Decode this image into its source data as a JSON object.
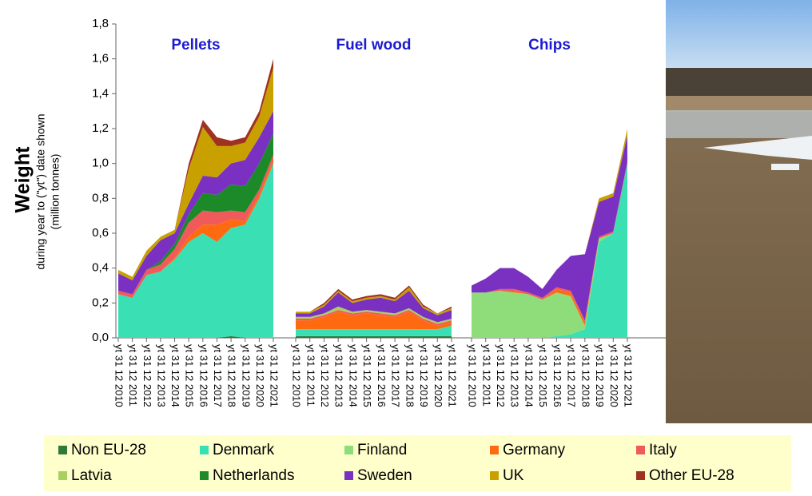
{
  "chart_data": {
    "type": "area",
    "y_label": "Weight",
    "y_sublabel": [
      "during year to (\"yt\") date shown",
      "(million tonnes)"
    ],
    "ylim": [
      0,
      1.8
    ],
    "yticks": [
      {
        "value": 0,
        "label": "0,0"
      },
      {
        "value": 0.2,
        "label": "0,2"
      },
      {
        "value": 0.4,
        "label": "0,4"
      },
      {
        "value": 0.6,
        "label": "0,6"
      },
      {
        "value": 0.8,
        "label": "0,8"
      },
      {
        "value": 1.0,
        "label": "1,0"
      },
      {
        "value": 1.2,
        "label": "1,2"
      },
      {
        "value": 1.4,
        "label": "1,4"
      },
      {
        "value": 1.6,
        "label": "1,6"
      },
      {
        "value": 1.8,
        "label": "1,8"
      }
    ],
    "legend": [
      {
        "name": "Non EU-28",
        "color": "#2f7a3a"
      },
      {
        "name": "Denmark",
        "color": "#3ae0b4"
      },
      {
        "name": "Finland",
        "color": "#8fdc7a"
      },
      {
        "name": "Germany",
        "color": "#ff6a10"
      },
      {
        "name": "Italy",
        "color": "#f05a5a"
      },
      {
        "name": "Latvia",
        "color": "#a8d060"
      },
      {
        "name": "Netherlands",
        "color": "#1d8a2a"
      },
      {
        "name": "Sweden",
        "color": "#7a30c0"
      },
      {
        "name": "UK",
        "color": "#c8a000"
      },
      {
        "name": "Other EU-28",
        "color": "#a03020"
      }
    ],
    "panels": [
      {
        "title": "Pellets",
        "categories": [
          "yt 31 12 2010",
          "yt 31 12 2011",
          "yt 31 12 2012",
          "yt 31 12 2013",
          "yt 31 12 2014",
          "yt 31 12 2015",
          "yt 31 12 2016",
          "yt 31 12 2017",
          "yt 31 12 2018",
          "yt 31 12 2019",
          "yt 31 12 2020",
          "yt 31 12 2021"
        ],
        "series": [
          [
            0,
            0,
            0,
            0,
            0,
            0,
            0,
            0,
            0.01,
            0,
            0,
            0
          ],
          [
            0.25,
            0.23,
            0.36,
            0.38,
            0.45,
            0.55,
            0.6,
            0.55,
            0.62,
            0.65,
            0.8,
            1.0
          ],
          [
            0,
            0,
            0,
            0,
            0,
            0,
            0,
            0,
            0,
            0,
            0,
            0
          ],
          [
            0,
            0,
            0,
            0,
            0.01,
            0.03,
            0.05,
            0.1,
            0.05,
            0.02,
            0.02,
            0.02
          ],
          [
            0.02,
            0.02,
            0.03,
            0.04,
            0.05,
            0.08,
            0.08,
            0.07,
            0.05,
            0.05,
            0.03,
            0.03
          ],
          [
            0,
            0,
            0,
            0,
            0,
            0,
            0,
            0,
            0,
            0,
            0,
            0
          ],
          [
            0,
            0,
            0,
            0.02,
            0.03,
            0.05,
            0.1,
            0.1,
            0.15,
            0.15,
            0.15,
            0.12
          ],
          [
            0.1,
            0.08,
            0.08,
            0.12,
            0.06,
            0.06,
            0.1,
            0.1,
            0.12,
            0.15,
            0.15,
            0.13
          ],
          [
            0.02,
            0.02,
            0.03,
            0.02,
            0.02,
            0.2,
            0.28,
            0.18,
            0.1,
            0.1,
            0.12,
            0.25
          ],
          [
            0,
            0,
            0,
            0,
            0,
            0.03,
            0.04,
            0.05,
            0.03,
            0.03,
            0.03,
            0.05
          ]
        ]
      },
      {
        "title": "Fuel wood",
        "categories": [
          "yt 31 12 2010",
          "yt 31 12 2011",
          "yt 31 12 2012",
          "yt 31 12 2013",
          "yt 31 12 2014",
          "yt 31 12 2015",
          "yt 31 12 2016",
          "yt 31 12 2017",
          "yt 31 12 2018",
          "yt 31 12 2019",
          "yt 31 12 2020",
          "yt 31 12 2021"
        ],
        "series": [
          [
            0.01,
            0.01,
            0.01,
            0.01,
            0.01,
            0.01,
            0.01,
            0.01,
            0.01,
            0.01,
            0.01,
            0.01
          ],
          [
            0.04,
            0.04,
            0.04,
            0.04,
            0.04,
            0.04,
            0.04,
            0.04,
            0.04,
            0.04,
            0.04,
            0.06
          ],
          [
            0,
            0,
            0,
            0,
            0,
            0,
            0,
            0,
            0,
            0,
            0,
            0
          ],
          [
            0.05,
            0.05,
            0.07,
            0.1,
            0.08,
            0.09,
            0.08,
            0.07,
            0.1,
            0.05,
            0.02,
            0.02
          ],
          [
            0.01,
            0.01,
            0.01,
            0.01,
            0.01,
            0.01,
            0.01,
            0.01,
            0.01,
            0.01,
            0.01,
            0.01
          ],
          [
            0.01,
            0.01,
            0.01,
            0.02,
            0.01,
            0.01,
            0.01,
            0.01,
            0.01,
            0.01,
            0.01,
            0.01
          ],
          [
            0,
            0,
            0,
            0,
            0,
            0,
            0,
            0,
            0,
            0,
            0,
            0
          ],
          [
            0.02,
            0.02,
            0.04,
            0.08,
            0.05,
            0.06,
            0.08,
            0.07,
            0.1,
            0.05,
            0.04,
            0.05
          ],
          [
            0.01,
            0.01,
            0.01,
            0.01,
            0.01,
            0.01,
            0.01,
            0.01,
            0.02,
            0.01,
            0.01,
            0.01
          ],
          [
            0,
            0,
            0.01,
            0.01,
            0.01,
            0.01,
            0.01,
            0.01,
            0.01,
            0.01,
            0,
            0.01
          ]
        ]
      },
      {
        "title": "Chips",
        "categories": [
          "yt 31 12 2010",
          "yt 31 12 2011",
          "yt 31 12 2012",
          "yt 31 12 2013",
          "yt 31 12 2014",
          "yt 31 12 2015",
          "yt 31 12 2016",
          "yt 31 12 2017",
          "yt 31 12 2018",
          "yt 31 12 2019",
          "yt 31 12 2020",
          "yt 31 12 2021"
        ],
        "series": [
          [
            0,
            0,
            0,
            0,
            0,
            0,
            0,
            0,
            0,
            0,
            0,
            0
          ],
          [
            0,
            0,
            0,
            0,
            0,
            0,
            0.01,
            0.02,
            0.05,
            0.55,
            0.6,
            1.0
          ],
          [
            0.26,
            0.26,
            0.27,
            0.26,
            0.25,
            0.22,
            0.25,
            0.22,
            0.02,
            0.02,
            0,
            0
          ],
          [
            0,
            0,
            0,
            0.01,
            0,
            0,
            0.02,
            0.02,
            0.02,
            0,
            0,
            0
          ],
          [
            0,
            0,
            0.01,
            0.01,
            0.01,
            0.01,
            0.01,
            0.01,
            0.01,
            0.01,
            0.01,
            0.01
          ],
          [
            0,
            0,
            0,
            0,
            0,
            0,
            0,
            0,
            0,
            0,
            0,
            0
          ],
          [
            0,
            0,
            0,
            0,
            0,
            0,
            0,
            0,
            0,
            0,
            0,
            0
          ],
          [
            0.04,
            0.08,
            0.12,
            0.12,
            0.09,
            0.05,
            0.1,
            0.2,
            0.38,
            0.2,
            0.2,
            0.15
          ],
          [
            0,
            0,
            0,
            0,
            0,
            0,
            0,
            0,
            0,
            0.02,
            0.02,
            0.04
          ],
          [
            0,
            0,
            0,
            0,
            0,
            0,
            0,
            0,
            0,
            0,
            0,
            0
          ]
        ]
      }
    ]
  }
}
